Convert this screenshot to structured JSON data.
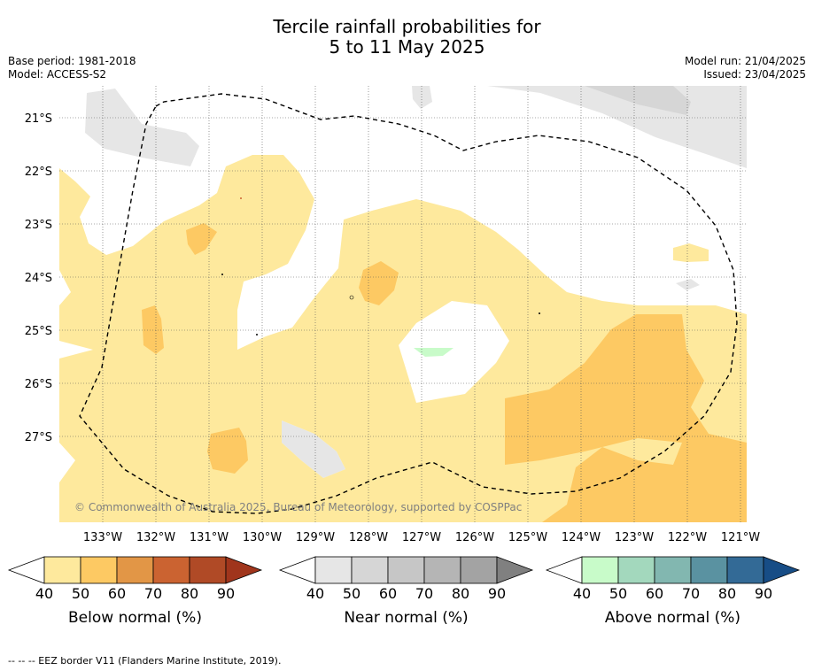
{
  "title_line1": "Tercile rainfall probabilities for",
  "title_line2": "5 to 11 May 2025",
  "base_period": "Base period: 1981-2018",
  "model": "Model: ACCESS-S2",
  "model_run": "Model run: 21/04/2025",
  "issued": "Issued: 23/04/2025",
  "copyright": "© Commonwealth of Australia 2025, Bureau of Meteorology, supported by COSPPac",
  "lat_labels": [
    "21°S",
    "22°S",
    "23°S",
    "24°S",
    "25°S",
    "26°S",
    "27°S"
  ],
  "lon_labels": [
    "133°W",
    "132°W",
    "131°W",
    "130°W",
    "129°W",
    "128°W",
    "127°W",
    "126°W",
    "125°W",
    "124°W",
    "123°W",
    "122°W",
    "121°W"
  ],
  "colorbars": [
    {
      "label": "Below normal (%)",
      "ticks": [
        "40",
        "50",
        "60",
        "70",
        "80",
        "90"
      ],
      "colors": [
        "#ffffff",
        "#fee99d",
        "#fdc963",
        "#e29646",
        "#cb6331",
        "#b04a26",
        "#a0351c"
      ]
    },
    {
      "label": "Near normal (%)",
      "ticks": [
        "40",
        "50",
        "60",
        "70",
        "80",
        "90"
      ],
      "colors": [
        "#ffffff",
        "#e6e6e6",
        "#d6d6d6",
        "#c6c6c6",
        "#b5b5b5",
        "#a3a3a3",
        "#808080"
      ]
    },
    {
      "label": "Above normal (%)",
      "ticks": [
        "40",
        "50",
        "60",
        "70",
        "80",
        "90"
      ],
      "colors": [
        "#ffffff",
        "#c8fbc9",
        "#a3d8bd",
        "#82b7b0",
        "#5a92a1",
        "#336a96",
        "#174d86"
      ]
    }
  ],
  "footnote": "--  --  -- EEZ border V11 (Flanders Marine Institute, 2019)."
}
